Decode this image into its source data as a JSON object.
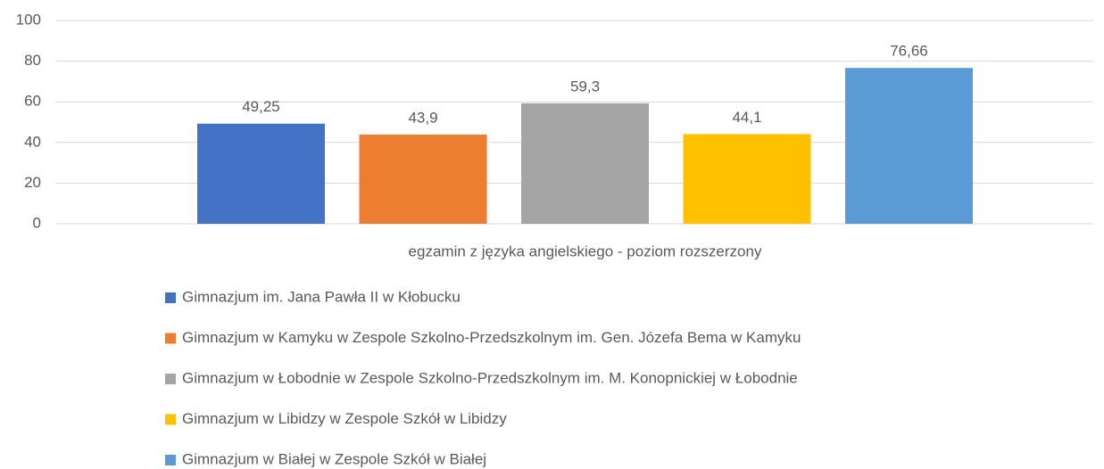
{
  "chart_data": {
    "type": "bar",
    "categories": [
      "egzamin z języka angielskiego - poziom rozszerzony"
    ],
    "series": [
      {
        "name": "Gimnazjum im. Jana Pawła II w Kłobucku",
        "color": "#4472c4",
        "values": [
          49.25
        ],
        "value_labels": [
          "49,25"
        ]
      },
      {
        "name": "Gimnazjum w Kamyku w Zespole Szkolno-Przedszkolnym im. Gen. Józefa Bema w  Kamyku",
        "color": "#ed7d31",
        "values": [
          43.9
        ],
        "value_labels": [
          "43,9"
        ]
      },
      {
        "name": "Gimnazjum w Łobodnie w Zespole Szkolno-Przedszkolnym im. M. Konopnickiej w Łobodnie",
        "color": "#a5a5a5",
        "values": [
          59.3
        ],
        "value_labels": [
          "59,3"
        ]
      },
      {
        "name": "Gimnazjum w Libidzy w Zespole Szkół w Libidzy",
        "color": "#ffc000",
        "values": [
          44.1
        ],
        "value_labels": [
          "44,1"
        ]
      },
      {
        "name": "Gimnazjum w Białej w Zespole Szkół w Białej",
        "color": "#5b9bd5",
        "values": [
          76.66
        ],
        "value_labels": [
          "76,66"
        ]
      }
    ],
    "ylim": [
      0,
      100
    ],
    "yticks": [
      0,
      20,
      40,
      60,
      80,
      100
    ],
    "grid": true,
    "legend": "bottom"
  }
}
